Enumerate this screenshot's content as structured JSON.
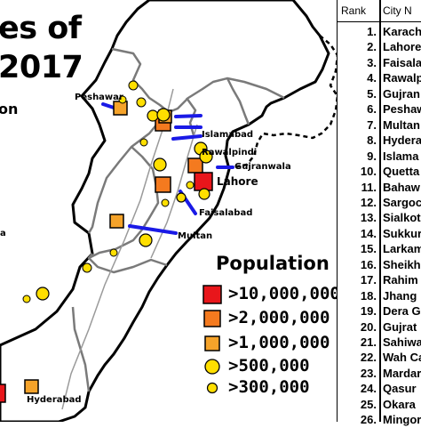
{
  "title": {
    "line1": "es of",
    "line2": "2017",
    "subtitle": "on"
  },
  "map": {
    "labels": {
      "peshawar": "Peshawar",
      "islamabad": "Islamabad",
      "rawalpindi": "Rawalpindi",
      "gujranwala": "Gujranwala",
      "lahore": "Lahore",
      "faisalabad": "Faisalabad",
      "multan": "Multan",
      "hyderabad": "Hyderabad",
      "edge_fragment": "a"
    },
    "colors": {
      "land": "#ffffff",
      "border": "#000000",
      "province_border": "#7a7a7a",
      "river": "#9a9a9a",
      "leader": "#1a1ae6",
      "marker_red": "#e8161b",
      "marker_orange": "#f47a1f",
      "marker_lightorange": "#f5a32a",
      "marker_yellow": "#ffdf00"
    }
  },
  "legend": {
    "title": "Population",
    "items": [
      {
        "symbol": "red-square",
        "label": ">10,000,000"
      },
      {
        "symbol": "orange-square",
        "label": ">2,000,000"
      },
      {
        "symbol": "light-orange-square",
        "label": ">1,000,000"
      },
      {
        "symbol": "large-yellow-circle",
        "label": ">500,000"
      },
      {
        "symbol": "small-yellow-circle",
        "label": ">300,000"
      }
    ]
  },
  "rank_table": {
    "header_rank": "Rank",
    "header_city": "City N",
    "rows": [
      {
        "rank": "1.",
        "city": "Karach"
      },
      {
        "rank": "2.",
        "city": "Lahore"
      },
      {
        "rank": "3.",
        "city": "Faisala"
      },
      {
        "rank": "4.",
        "city": "Rawalp"
      },
      {
        "rank": "5.",
        "city": "Gujran"
      },
      {
        "rank": "6.",
        "city": "Peshaw"
      },
      {
        "rank": "7.",
        "city": "Multan"
      },
      {
        "rank": "8.",
        "city": "Hydera"
      },
      {
        "rank": "9.",
        "city": "Islama"
      },
      {
        "rank": "10.",
        "city": "Quetta"
      },
      {
        "rank": "11.",
        "city": "Bahaw"
      },
      {
        "rank": "12.",
        "city": "Sargoc"
      },
      {
        "rank": "13.",
        "city": "Sialkot"
      },
      {
        "rank": "14.",
        "city": "Sukkur"
      },
      {
        "rank": "15.",
        "city": "Larkam"
      },
      {
        "rank": "16.",
        "city": "Sheikh"
      },
      {
        "rank": "17.",
        "city": "Rahim Y"
      },
      {
        "rank": "18.",
        "city": "Jhang"
      },
      {
        "rank": "19.",
        "city": "Dera Gh"
      },
      {
        "rank": "20.",
        "city": "Gujrat"
      },
      {
        "rank": "21.",
        "city": "Sahiwa"
      },
      {
        "rank": "22.",
        "city": "Wah Car"
      },
      {
        "rank": "23.",
        "city": "Mardar"
      },
      {
        "rank": "24.",
        "city": "Qasur"
      },
      {
        "rank": "25.",
        "city": "Okara"
      },
      {
        "rank": "26.",
        "city": "Mingor"
      }
    ]
  }
}
